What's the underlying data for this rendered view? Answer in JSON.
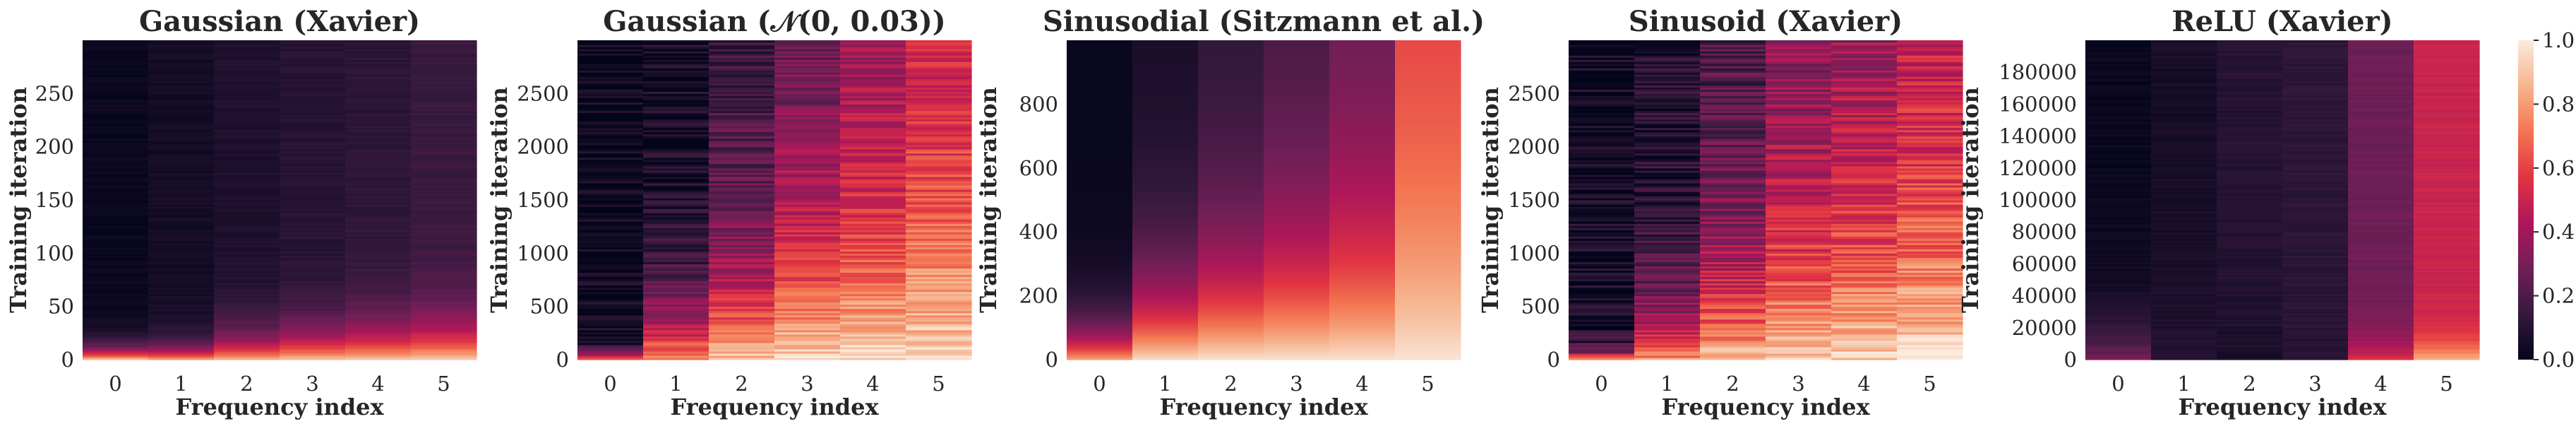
{
  "colorbar": {
    "ticks": [
      "0.0",
      "0.2",
      "0.4",
      "0.6",
      "0.8",
      "1.0"
    ],
    "tick_values": [
      0.0,
      0.2,
      0.4,
      0.6,
      0.8,
      1.0
    ],
    "range": [
      0,
      1
    ],
    "colormap": "rocket",
    "colormap_stops": [
      "#03051a",
      "#35193e",
      "#701f57",
      "#ae1759",
      "#e13342",
      "#f37651",
      "#f6b48f",
      "#faebdd"
    ]
  },
  "chart_data": [
    {
      "type": "heatmap",
      "title": "Gaussian (Xavier)",
      "xlabel": "Frequency index",
      "ylabel": "Training iteration",
      "x_categories": [
        "0",
        "1",
        "2",
        "3",
        "4",
        "5"
      ],
      "ylim": [
        0,
        300
      ],
      "yticks": [
        0,
        50,
        100,
        150,
        200,
        250
      ],
      "ytick_labels": [
        "0",
        "50",
        "100",
        "150",
        "200",
        "250"
      ],
      "columns": [
        {
          "index": 0,
          "start_value": 0.85,
          "end_value": 0.02,
          "decay_fraction": 0.06
        },
        {
          "index": 1,
          "start_value": 0.78,
          "end_value": 0.05,
          "decay_fraction": 0.07
        },
        {
          "index": 2,
          "start_value": 0.82,
          "end_value": 0.08,
          "decay_fraction": 0.12
        },
        {
          "index": 3,
          "start_value": 0.88,
          "end_value": 0.1,
          "decay_fraction": 0.14
        },
        {
          "index": 4,
          "start_value": 0.88,
          "end_value": 0.12,
          "decay_fraction": 0.16
        },
        {
          "index": 5,
          "start_value": 0.9,
          "end_value": 0.15,
          "decay_fraction": 0.18
        }
      ],
      "noise": 0.02
    },
    {
      "type": "heatmap",
      "title": "Gaussian (𝒩(0, 0.03))",
      "xlabel": "Frequency index",
      "ylabel": "Training iteration",
      "x_categories": [
        "0",
        "1",
        "2",
        "3",
        "4",
        "5"
      ],
      "ylim": [
        0,
        3000
      ],
      "yticks": [
        0,
        500,
        1000,
        1500,
        2000,
        2500
      ],
      "ytick_labels": [
        "0",
        "500",
        "1000",
        "1500",
        "2000",
        "2500"
      ],
      "columns": [
        {
          "index": 0,
          "start_value": 0.55,
          "end_value": 0.02,
          "decay_fraction": 0.05
        },
        {
          "index": 1,
          "start_value": 0.8,
          "end_value": 0.05,
          "decay_fraction": 0.3
        },
        {
          "index": 2,
          "start_value": 0.9,
          "end_value": 0.12,
          "decay_fraction": 0.55
        },
        {
          "index": 3,
          "start_value": 0.95,
          "end_value": 0.2,
          "decay_fraction": 0.8
        },
        {
          "index": 4,
          "start_value": 0.96,
          "end_value": 0.3,
          "decay_fraction": 0.9
        },
        {
          "index": 5,
          "start_value": 0.97,
          "end_value": 0.42,
          "decay_fraction": 1.0
        }
      ],
      "noise": 0.1
    },
    {
      "type": "heatmap",
      "title": "Sinusodial (Sitzmann et al.)",
      "xlabel": "Frequency index",
      "ylabel": "Training iteration",
      "x_categories": [
        "0",
        "1",
        "2",
        "3",
        "4",
        "5"
      ],
      "ylim": [
        0,
        1000
      ],
      "yticks": [
        0,
        200,
        400,
        600,
        800
      ],
      "ytick_labels": [
        "0",
        "200",
        "400",
        "600",
        "800"
      ],
      "columns": [
        {
          "index": 0,
          "start_value": 0.8,
          "end_value": 0.02,
          "decay_fraction": 0.18
        },
        {
          "index": 1,
          "start_value": 0.95,
          "end_value": 0.06,
          "decay_fraction": 0.4
        },
        {
          "index": 2,
          "start_value": 0.97,
          "end_value": 0.1,
          "decay_fraction": 0.55
        },
        {
          "index": 3,
          "start_value": 0.97,
          "end_value": 0.15,
          "decay_fraction": 0.65
        },
        {
          "index": 4,
          "start_value": 0.97,
          "end_value": 0.22,
          "decay_fraction": 0.75
        },
        {
          "index": 5,
          "start_value": 0.98,
          "end_value": 0.55,
          "decay_fraction": 1.0
        }
      ],
      "noise": 0.0
    },
    {
      "type": "heatmap",
      "title": "Sinusoid (Xavier)",
      "xlabel": "Frequency index",
      "ylabel": "Training iteration",
      "x_categories": [
        "0",
        "1",
        "2",
        "3",
        "4",
        "5"
      ],
      "ylim": [
        0,
        3000
      ],
      "yticks": [
        0,
        500,
        1000,
        1500,
        2000,
        2500
      ],
      "ytick_labels": [
        "0",
        "500",
        "1000",
        "1500",
        "2000",
        "2500"
      ],
      "columns": [
        {
          "index": 0,
          "start_value": 0.65,
          "end_value": 0.03,
          "decay_fraction": 0.06
        },
        {
          "index": 1,
          "start_value": 0.8,
          "end_value": 0.08,
          "decay_fraction": 0.3
        },
        {
          "index": 2,
          "start_value": 0.88,
          "end_value": 0.15,
          "decay_fraction": 0.6
        },
        {
          "index": 3,
          "start_value": 0.93,
          "end_value": 0.25,
          "decay_fraction": 0.85
        },
        {
          "index": 4,
          "start_value": 0.95,
          "end_value": 0.3,
          "decay_fraction": 0.9
        },
        {
          "index": 5,
          "start_value": 0.96,
          "end_value": 0.38,
          "decay_fraction": 1.0
        }
      ],
      "noise": 0.12
    },
    {
      "type": "heatmap",
      "title": "ReLU (Xavier)",
      "xlabel": "Frequency index",
      "ylabel": "Training iteration",
      "x_categories": [
        "0",
        "1",
        "2",
        "3",
        "4",
        "5"
      ],
      "ylim": [
        0,
        200000
      ],
      "yticks": [
        0,
        20000,
        40000,
        60000,
        80000,
        100000,
        120000,
        140000,
        160000,
        180000
      ],
      "ytick_labels": [
        "0",
        "20000",
        "40000",
        "60000",
        "80000",
        "100000",
        "120000",
        "140000",
        "160000",
        "180000"
      ],
      "columns": [
        {
          "index": 0,
          "start_value": 0.3,
          "end_value": 0.02,
          "decay_fraction": 0.2
        },
        {
          "index": 1,
          "start_value": 0.1,
          "end_value": 0.06,
          "decay_fraction": 0.3
        },
        {
          "index": 2,
          "start_value": 0.06,
          "end_value": 0.1,
          "decay_fraction": 0.3
        },
        {
          "index": 3,
          "start_value": 0.1,
          "end_value": 0.12,
          "decay_fraction": 0.3
        },
        {
          "index": 4,
          "start_value": 0.55,
          "end_value": 0.28,
          "decay_fraction": 0.12
        },
        {
          "index": 5,
          "start_value": 0.85,
          "end_value": 0.5,
          "decay_fraction": 0.1
        }
      ],
      "noise": 0.02
    }
  ]
}
